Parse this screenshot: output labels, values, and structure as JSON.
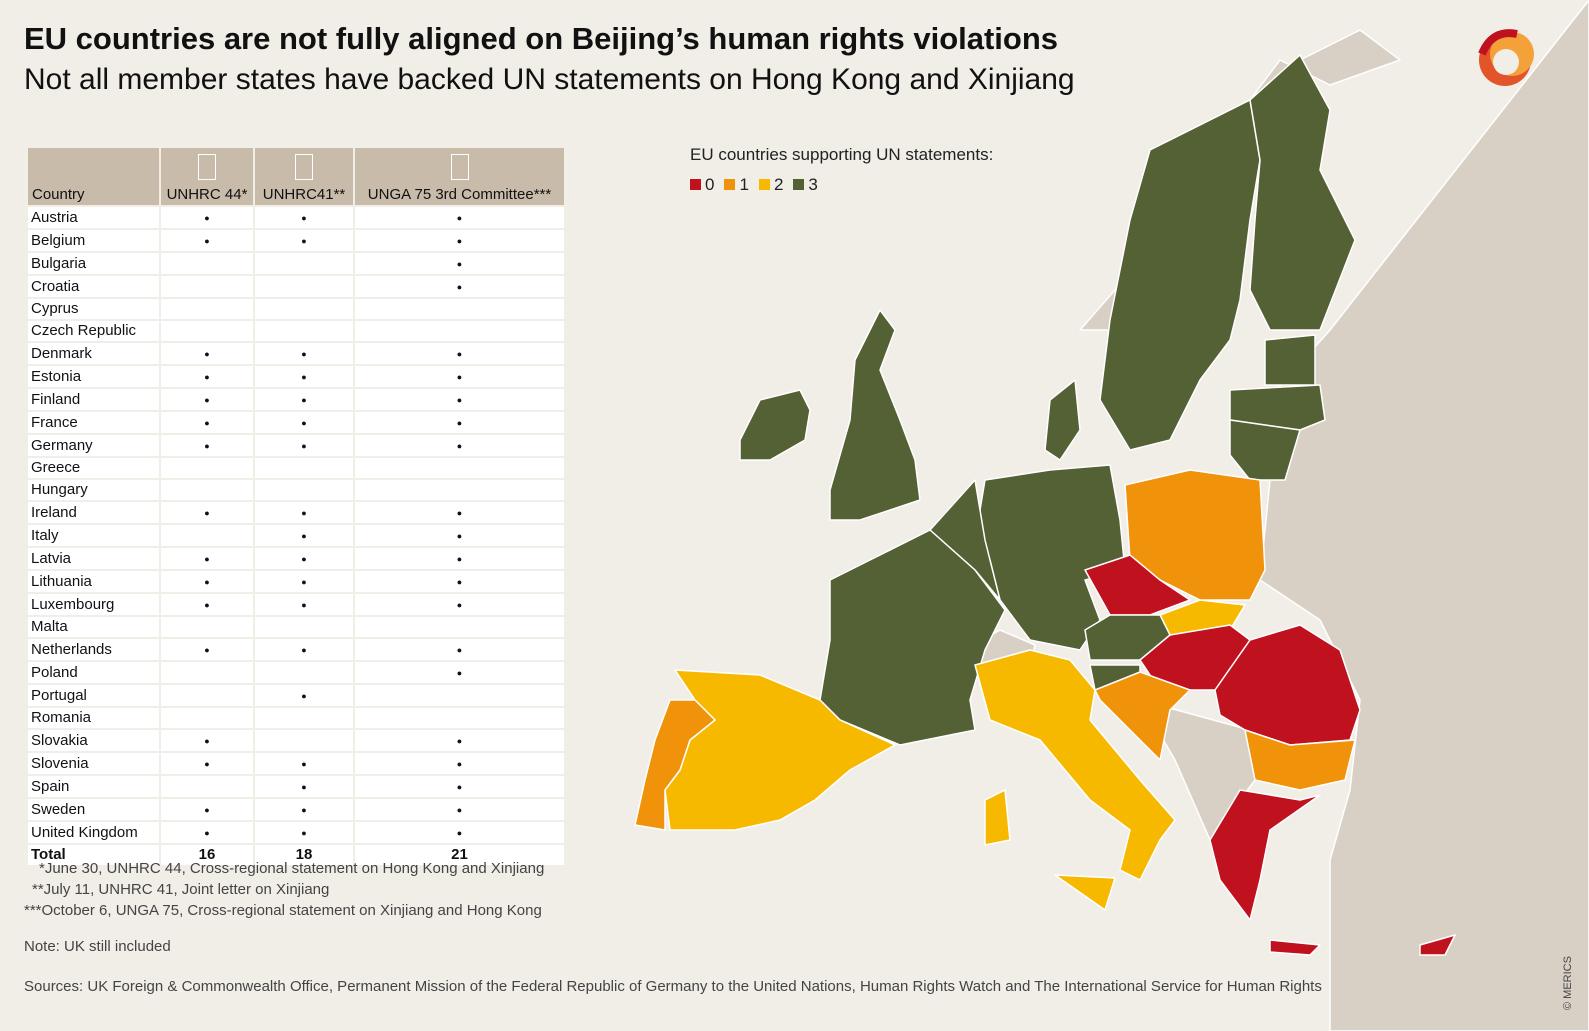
{
  "title": "EU countries are not fully aligned on Beijing’s human rights violations",
  "subtitle": "Not all member states have backed UN statements on Hong Kong and Xinjiang",
  "table": {
    "headers": [
      "Country",
      "UNHRC 44*",
      "UNHRC41**",
      "UNGA 75 3rd Committee***"
    ],
    "rows": [
      {
        "country": "Austria",
        "v": [
          1,
          1,
          1
        ]
      },
      {
        "country": "Belgium",
        "v": [
          1,
          1,
          1
        ]
      },
      {
        "country": "Bulgaria",
        "v": [
          0,
          0,
          1
        ]
      },
      {
        "country": "Croatia",
        "v": [
          0,
          0,
          1
        ]
      },
      {
        "country": "Cyprus",
        "v": [
          0,
          0,
          0
        ]
      },
      {
        "country": "Czech Republic",
        "v": [
          0,
          0,
          0
        ]
      },
      {
        "country": "Denmark",
        "v": [
          1,
          1,
          1
        ]
      },
      {
        "country": "Estonia",
        "v": [
          1,
          1,
          1
        ]
      },
      {
        "country": "Finland",
        "v": [
          1,
          1,
          1
        ]
      },
      {
        "country": "France",
        "v": [
          1,
          1,
          1
        ]
      },
      {
        "country": "Germany",
        "v": [
          1,
          1,
          1
        ]
      },
      {
        "country": "Greece",
        "v": [
          0,
          0,
          0
        ]
      },
      {
        "country": "Hungary",
        "v": [
          0,
          0,
          0
        ]
      },
      {
        "country": "Ireland",
        "v": [
          1,
          1,
          1
        ]
      },
      {
        "country": "Italy",
        "v": [
          0,
          1,
          1
        ]
      },
      {
        "country": "Latvia",
        "v": [
          1,
          1,
          1
        ]
      },
      {
        "country": "Lithuania",
        "v": [
          1,
          1,
          1
        ]
      },
      {
        "country": "Luxembourg",
        "v": [
          1,
          1,
          1
        ]
      },
      {
        "country": "Malta",
        "v": [
          0,
          0,
          0
        ]
      },
      {
        "country": "Netherlands",
        "v": [
          1,
          1,
          1
        ]
      },
      {
        "country": "Poland",
        "v": [
          0,
          0,
          1
        ]
      },
      {
        "country": "Portugal",
        "v": [
          0,
          1,
          0
        ]
      },
      {
        "country": "Romania",
        "v": [
          0,
          0,
          0
        ]
      },
      {
        "country": "Slovakia",
        "v": [
          1,
          0,
          1
        ]
      },
      {
        "country": "Slovenia",
        "v": [
          1,
          1,
          1
        ]
      },
      {
        "country": "Spain",
        "v": [
          0,
          1,
          1
        ]
      },
      {
        "country": "Sweden",
        "v": [
          1,
          1,
          1
        ]
      },
      {
        "country": "United Kingdom",
        "v": [
          1,
          1,
          1
        ]
      }
    ],
    "total_label": "Total",
    "totals": [
      "16",
      "18",
      "21"
    ]
  },
  "footnotes": [
    "*June 30, UNHRC 44, Cross-regional statement on Hong Kong and Xinjiang",
    "**July 11, UNHRC 41, Joint letter on Xinjiang",
    "***October 6, UNGA 75, Cross-regional statement on Xinjiang and Hong Kong"
  ],
  "note": "Note: UK still included",
  "sources": "Sources: UK Foreign & Commonwealth Office, Permanent Mission of the Federal Republic of Germany to the United Nations, Human Rights Watch and The International Service for Human Rights",
  "credit": "© MERICS",
  "legend": {
    "title": "EU countries supporting UN statements:",
    "items": [
      {
        "label": "0",
        "color": "#c0111f"
      },
      {
        "label": "1",
        "color": "#f0920a"
      },
      {
        "label": "2",
        "color": "#f7b800"
      },
      {
        "label": "3",
        "color": "#536134"
      }
    ]
  },
  "colors": {
    "non_eu": "#d9d0c5",
    "background": "#f1ede7",
    "header": "#c8bbaa"
  }
}
